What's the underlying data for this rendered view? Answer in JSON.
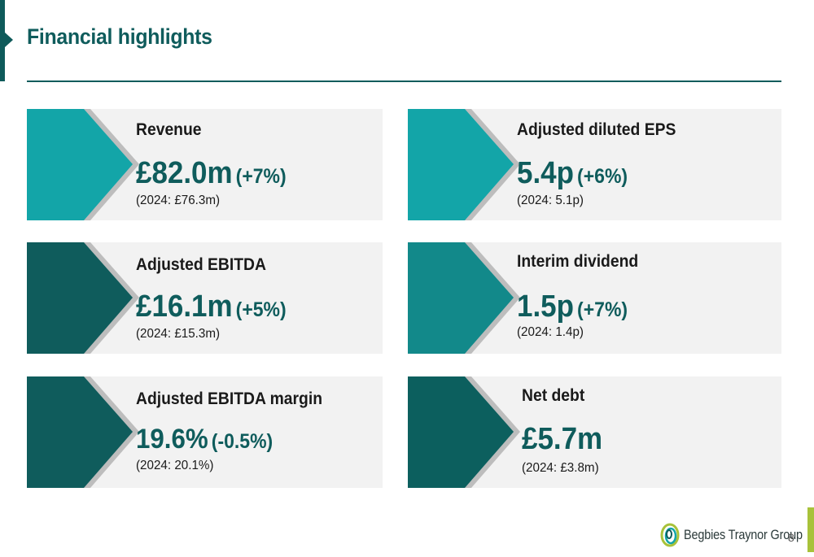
{
  "title": "Financial highlights",
  "cards": [
    {
      "label": "Revenue",
      "value": "£82.0m",
      "change": "(+7%)",
      "prior": "(2024: £76.3m)",
      "color": "#13a5a8"
    },
    {
      "label": "Adjusted diluted EPS",
      "value": "5.4p",
      "change": "(+6%)",
      "prior": "(2024: 5.1p)",
      "color": "#13a5a8"
    },
    {
      "label": "Adjusted EBITDA",
      "value": "£16.1m",
      "change": "(+5%)",
      "prior": "(2024: £15.3m)",
      "color": "#0f5c5c"
    },
    {
      "label": "Interim dividend",
      "value": "1.5p",
      "change": "(+7%)",
      "prior": "(2024: 1.4p)",
      "color": "#12898a"
    },
    {
      "label": "Adjusted EBITDA margin",
      "value": "19.6%",
      "change": "(-0.5%)",
      "prior": "(2024: 20.1%)",
      "color": "#0f5c5c"
    },
    {
      "label": "Net debt",
      "value": "£5.7m",
      "change": "",
      "prior": "(2024: £3.8m)",
      "color": "#0c5f5e"
    }
  ],
  "footer": {
    "brand": "Begbies Traynor Group",
    "page_number": "8",
    "logo_icon": "begbies-swirl-icon",
    "accent_color": "#a8c23a"
  }
}
